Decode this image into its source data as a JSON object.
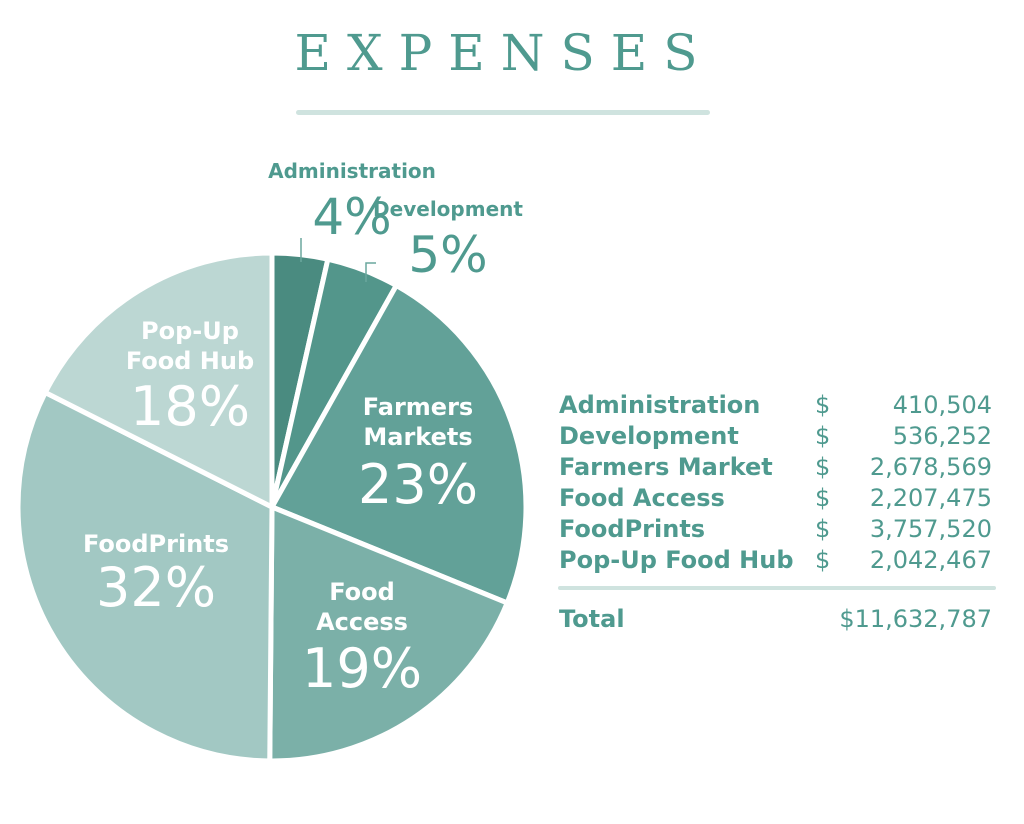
{
  "chart_data": {
    "type": "pie",
    "title": "EXPENSES",
    "slices": [
      {
        "label": "Administration",
        "percent_label": "4%",
        "value": 410504,
        "color": "#4a8b80"
      },
      {
        "label": "Development",
        "percent_label": "5%",
        "value": 536252,
        "color": "#53968b"
      },
      {
        "label": "Farmers Markets",
        "percent_label": "23%",
        "value": 2678569,
        "color": "#62a198"
      },
      {
        "label": "Food Access",
        "percent_label": "19%",
        "value": 2207475,
        "color": "#7bb0a8"
      },
      {
        "label": "FoodPrints",
        "percent_label": "32%",
        "value": 3757520,
        "color": "#a2c8c3"
      },
      {
        "label": "Pop-Up Food Hub",
        "percent_label": "18%",
        "value": 2042467,
        "color": "#bcd7d3"
      }
    ],
    "pie_labels": [
      {
        "lines": [
          "Administration"
        ],
        "pct": "4%"
      },
      {
        "lines": [
          "Development"
        ],
        "pct": "5%"
      },
      {
        "lines": [
          "Farmers",
          "Markets"
        ],
        "pct": "23%"
      },
      {
        "lines": [
          "Food",
          "Access"
        ],
        "pct": "19%"
      },
      {
        "lines": [
          "FoodPrints"
        ],
        "pct": "32%"
      },
      {
        "lines": [
          "Pop-Up",
          "Food Hub"
        ],
        "pct": "18%"
      }
    ],
    "table": {
      "rows": [
        {
          "label": "Administration",
          "currency": "$",
          "amount": "410,504"
        },
        {
          "label": "Development",
          "currency": "$",
          "amount": "536,252"
        },
        {
          "label": "Farmers Market",
          "currency": "$",
          "amount": "2,678,569"
        },
        {
          "label": "Food Access",
          "currency": "$",
          "amount": "2,207,475"
        },
        {
          "label": "FoodPrints",
          "currency": "$",
          "amount": "3,757,520"
        },
        {
          "label": "Pop-Up Food Hub",
          "currency": "$",
          "amount": "2,042,467"
        }
      ],
      "total_label": "Total",
      "total_amount": "$11,632,787"
    }
  }
}
